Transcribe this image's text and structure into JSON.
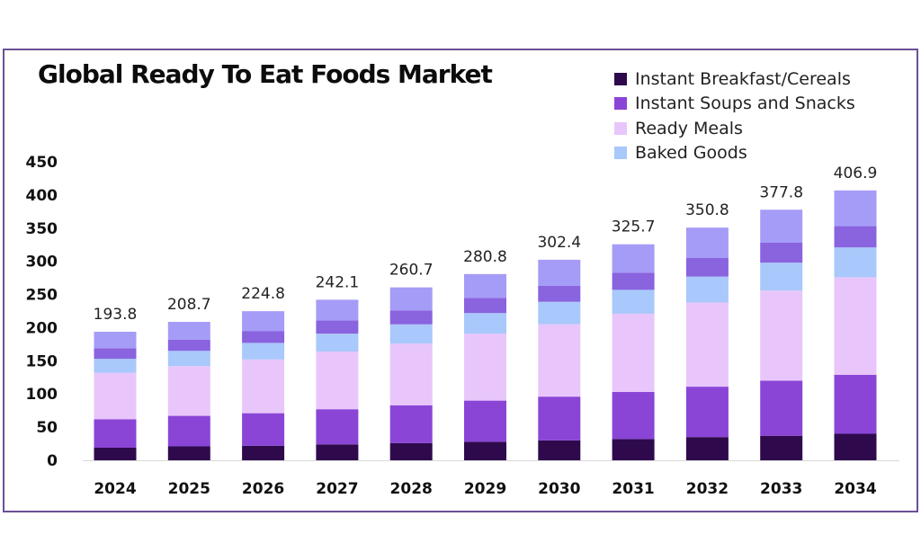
{
  "chart_data": {
    "type": "bar",
    "stacked": true,
    "title": "Global Ready To Eat Foods Market",
    "xlabel": "",
    "ylabel": "",
    "ylim": [
      0,
      450
    ],
    "yticks": [
      "450",
      "400",
      "350",
      "300",
      "250",
      "200",
      "150",
      "100",
      "50",
      "0"
    ],
    "grid": false,
    "legend_position": "top-right",
    "categories": [
      "2024",
      "2025",
      "2026",
      "2027",
      "2028",
      "2029",
      "2030",
      "2031",
      "2032",
      "2033",
      "2034"
    ],
    "totals": [
      "193.8",
      "208.7",
      "224.8",
      "242.1",
      "260.7",
      "280.8",
      "302.4",
      "325.7",
      "350.8",
      "377.8",
      "406.9"
    ],
    "series": [
      {
        "name": "Instant Breakfast/Cereals",
        "color": "#2e0a4d",
        "values": [
          19,
          21,
          22,
          24,
          26,
          28,
          30,
          32,
          35,
          37,
          40
        ]
      },
      {
        "name": "Instant Soups and Snacks",
        "color": "#8a45d6",
        "values": [
          43,
          46,
          49,
          53,
          57,
          62,
          66,
          71,
          76,
          83,
          89
        ]
      },
      {
        "name": "Ready Meals",
        "color": "#e8c6fb",
        "values": [
          70,
          75,
          81,
          87,
          93,
          101,
          109,
          118,
          127,
          136,
          147
        ]
      },
      {
        "name": "Baked Goods",
        "color": "#a9c8fb",
        "values": [
          21,
          23,
          25,
          27,
          29,
          31,
          34,
          36,
          39,
          42,
          45
        ]
      },
      {
        "name": "",
        "color": "#8a63df",
        "values": [
          16,
          17,
          18,
          20,
          21,
          23,
          24,
          26,
          28,
          30,
          32
        ]
      },
      {
        "name": "",
        "color": "#a59cf7",
        "values": [
          24.8,
          26.7,
          29.8,
          31.1,
          34.7,
          35.8,
          39.4,
          42.7,
          45.8,
          49.8,
          53.9
        ]
      }
    ]
  }
}
